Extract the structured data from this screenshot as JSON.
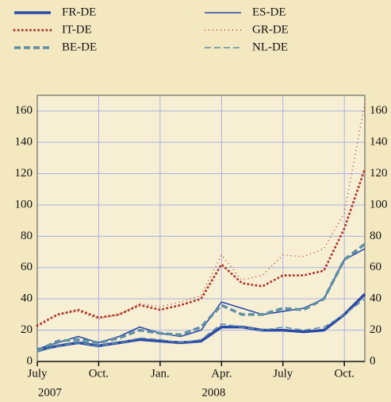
{
  "chart_data": {
    "type": "line",
    "x": [
      "2007-07",
      "2007-08",
      "2007-09",
      "2007-10",
      "2007-11",
      "2007-12",
      "2008-01",
      "2008-02",
      "2008-03",
      "2008-04",
      "2008-05",
      "2008-06",
      "2008-07",
      "2008-08",
      "2008-09",
      "2008-10",
      "2008-11"
    ],
    "series": [
      {
        "name": "FR-DE",
        "color": "#2a4aa8",
        "line_style": "solid",
        "line_width": 3.5,
        "values": [
          7,
          10,
          12,
          10,
          12,
          14,
          13,
          12,
          13,
          22,
          22,
          20,
          20,
          19,
          20,
          30,
          43
        ]
      },
      {
        "name": "ES-DE",
        "color": "#2a4aa8",
        "line_style": "solid",
        "line_width": 1.6,
        "values": [
          8,
          12,
          16,
          12,
          16,
          22,
          18,
          16,
          20,
          38,
          34,
          30,
          32,
          34,
          40,
          65,
          72
        ]
      },
      {
        "name": "IT-DE",
        "color": "#b23a2e",
        "line_style": "dotted",
        "line_width": 3,
        "values": [
          23,
          30,
          33,
          28,
          30,
          36,
          33,
          36,
          40,
          62,
          50,
          48,
          55,
          55,
          58,
          85,
          123
        ]
      },
      {
        "name": "GR-DE",
        "color": "#b23a2e",
        "line_style": "finedotted",
        "line_width": 1.4,
        "values": [
          22,
          30,
          32,
          27,
          30,
          37,
          35,
          38,
          42,
          68,
          52,
          55,
          68,
          67,
          72,
          95,
          165
        ]
      },
      {
        "name": "BE-DE",
        "color": "#5e8fa3",
        "line_style": "dashed",
        "line_width": 3.5,
        "values": [
          7,
          13,
          14,
          12,
          15,
          20,
          18,
          17,
          22,
          36,
          30,
          30,
          34,
          33,
          40,
          65,
          75
        ]
      },
      {
        "name": "NL-DE",
        "color": "#5e8fa3",
        "line_style": "dashed",
        "line_width": 1.5,
        "values": [
          6,
          10,
          12,
          10,
          12,
          15,
          14,
          12,
          14,
          24,
          22,
          20,
          22,
          20,
          22,
          30,
          40
        ]
      }
    ],
    "xlim": [
      "2007-07",
      "2008-11"
    ],
    "xticks": [
      {
        "value": "2007-07",
        "label": "July"
      },
      {
        "value": "2007-10",
        "label": "Oct."
      },
      {
        "value": "2008-01",
        "label": "Jan."
      },
      {
        "value": "2008-04",
        "label": "Apr."
      },
      {
        "value": "2008-07",
        "label": "July"
      },
      {
        "value": "2008-10",
        "label": "Oct."
      }
    ],
    "year_labels": [
      {
        "value": "2007-08",
        "label": "2007"
      },
      {
        "value": "2008-04",
        "label": "2008"
      }
    ],
    "ylim": [
      0,
      170
    ],
    "yticks": [
      0,
      20,
      40,
      60,
      80,
      100,
      120,
      140,
      160
    ],
    "grid": true
  }
}
